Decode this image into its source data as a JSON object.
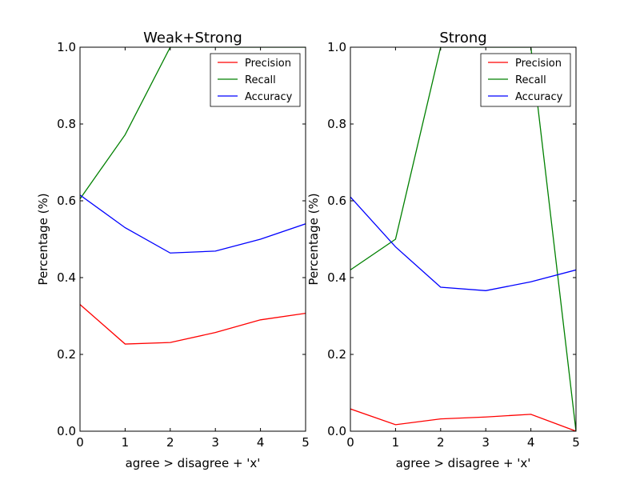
{
  "chart_data": [
    {
      "type": "line",
      "title": "Weak+Strong",
      "xlabel": "agree > disagree + 'x'",
      "ylabel": "Percentage (%)",
      "xlim": [
        0,
        5
      ],
      "ylim": [
        0,
        1
      ],
      "x": [
        0,
        1,
        2,
        3,
        4,
        5
      ],
      "x_ticks": [
        "0",
        "1",
        "2",
        "3",
        "4",
        "5"
      ],
      "y_ticks": [
        "0.0",
        "0.2",
        "0.4",
        "0.6",
        "0.8",
        "1.0"
      ],
      "legend": "top-right",
      "series": [
        {
          "name": "Precision",
          "color": "#ff0000",
          "values": [
            0.33,
            0.227,
            0.231,
            0.257,
            0.29,
            0.307
          ]
        },
        {
          "name": "Recall",
          "color": "#008000",
          "values": [
            0.605,
            0.772,
            1.0,
            1.0,
            1.0,
            1.0
          ]
        },
        {
          "name": "Accuracy",
          "color": "#0000ff",
          "values": [
            0.615,
            0.53,
            0.464,
            0.469,
            0.5,
            0.54
          ]
        }
      ]
    },
    {
      "type": "line",
      "title": "Strong",
      "xlabel": "agree > disagree + 'x'",
      "ylabel": "Percentage (%)",
      "xlim": [
        0,
        5
      ],
      "ylim": [
        0,
        1
      ],
      "x": [
        0,
        1,
        2,
        3,
        4,
        5
      ],
      "x_ticks": [
        "0",
        "1",
        "2",
        "3",
        "4",
        "5"
      ],
      "y_ticks": [
        "0.0",
        "0.2",
        "0.4",
        "0.6",
        "0.8",
        "1.0"
      ],
      "legend": "top-right",
      "series": [
        {
          "name": "Precision",
          "color": "#ff0000",
          "values": [
            0.058,
            0.017,
            0.032,
            0.037,
            0.044,
            0.0
          ]
        },
        {
          "name": "Recall",
          "color": "#008000",
          "values": [
            0.42,
            0.5,
            1.0,
            1.0,
            1.0,
            0.0
          ]
        },
        {
          "name": "Accuracy",
          "color": "#0000ff",
          "values": [
            0.61,
            0.48,
            0.375,
            0.366,
            0.389,
            0.42
          ]
        }
      ]
    }
  ]
}
